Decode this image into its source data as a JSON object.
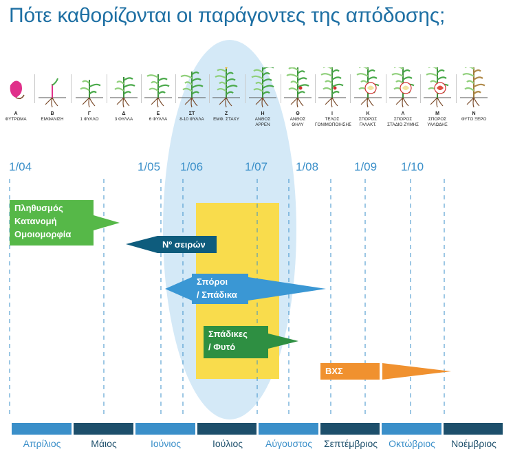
{
  "title": "Πότε καθορίζονται οι παράγοντες της απόδοσης;",
  "stages": [
    {
      "code": "A",
      "label": "ΦΥΤΡΩΜΑ",
      "icon": "seed-sprout-icon"
    },
    {
      "code": "B",
      "label": "ΕΜΦΑΝΙΣΗ",
      "icon": "emergence-icon"
    },
    {
      "code": "Γ",
      "label": "1 ΦΥΛΛΟ",
      "icon": "one-leaf-plant-icon"
    },
    {
      "code": "Δ",
      "label": "3 ΦΥΛΛΑ",
      "icon": "three-leaf-plant-icon"
    },
    {
      "code": "Ε",
      "label": "6 ΦΥΛΛΑ",
      "icon": "six-leaf-plant-icon"
    },
    {
      "code": "ΣΤ",
      "label": "8-10 ΦΥΛΛΑ",
      "icon": "ten-leaf-plant-icon"
    },
    {
      "code": "Ζ",
      "label": "ΕΜΦ. ΣΤΑΧΥ",
      "icon": "tassel-emergence-icon"
    },
    {
      "code": "Η",
      "label": "ΑΝΘΟΣ\nΑΡΡΕΝ",
      "icon": "male-flower-plant-icon"
    },
    {
      "code": "Θ",
      "label": "ΑΝΘΟΣ\nΘΗΛΥ",
      "icon": "female-flower-plant-icon"
    },
    {
      "code": "Ι",
      "label": "ΤΕΛΟΣ\nΓΟΝΙΜΟΠΟΙΗΣΗΣ",
      "icon": "fertilization-plant-icon"
    },
    {
      "code": "Κ",
      "label": "ΣΠΟΡΟΣ\nΓΑΛΑΚΤ.",
      "icon": "milk-grain-plant-icon"
    },
    {
      "code": "Λ",
      "label": "ΣΠΟΡΟΣ\nΣΤΑΔΙΟ ΖΥΜΗΣ",
      "icon": "dough-grain-plant-icon"
    },
    {
      "code": "Μ",
      "label": "ΣΠΟΡΟΣ\nΥΑΛΩΔΗΣ",
      "icon": "vitreous-grain-plant-icon"
    },
    {
      "code": "Ν",
      "label": "ΦΥΤΟ ΞΕΡΟ",
      "icon": "dry-plant-icon"
    }
  ],
  "dates": [
    "1/04",
    "1/05",
    "1/06",
    "1/07",
    "1/08",
    "1/09",
    "1/10"
  ],
  "months": [
    "Απρίλιος",
    "Μάιος",
    "Ιούνιος",
    "Ιούλιος",
    "Αύγουστος",
    "Σεπτέμβριος",
    "Οκτώβριος",
    "Νοέμβριος"
  ],
  "factors": {
    "population": {
      "lines": [
        "Πληθυσμός",
        "Κατανομή",
        "Ομοιομορφία"
      ],
      "color": "#56b848"
    },
    "rows": {
      "text": "Nº σειρών",
      "color": "#0e5c7d"
    },
    "grains": {
      "lines": [
        "Σπόροι",
        "/ Σπάδικα"
      ],
      "color": "#3a97d4"
    },
    "ears": {
      "lines": [
        "Σπάδικες",
        "/ Φυτό"
      ],
      "color": "#2e8f42"
    },
    "weight": {
      "text": "ΒΧΣ",
      "color": "#f0912f"
    }
  },
  "colors": {
    "title": "#1d6fa3",
    "ellipse": "#d4e9f7",
    "yellow_zone": "#f9dc4c",
    "month_light": "#3a8fc9",
    "month_dark": "#1d4f6b",
    "dashed_line": "#3a8fc9"
  }
}
